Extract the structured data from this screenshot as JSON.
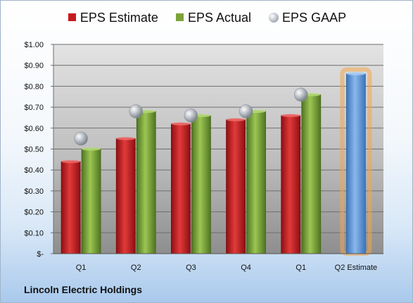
{
  "footer_title": "Lincoln Electric Holdings",
  "legend": [
    {
      "label": "EPS Estimate",
      "color": "#c8191f",
      "marker": "square"
    },
    {
      "label": "EPS Actual",
      "color": "#7ca33a",
      "marker": "square"
    },
    {
      "label": "EPS GAAP",
      "color": "#b8bec6",
      "marker": "circle"
    }
  ],
  "chart_data": {
    "type": "bar",
    "categories": [
      "Q1",
      "Q2",
      "Q3",
      "Q4",
      "Q1",
      "Q2 Estimate"
    ],
    "series": [
      {
        "name": "EPS Estimate",
        "values": [
          0.44,
          0.55,
          0.62,
          0.64,
          0.66,
          null
        ],
        "color": "#c8191f"
      },
      {
        "name": "EPS Actual",
        "values": [
          0.5,
          0.68,
          0.66,
          0.68,
          0.76,
          null
        ],
        "color": "#7ca33a"
      },
      {
        "name": "EPS GAAP",
        "values": [
          0.55,
          0.68,
          0.66,
          0.68,
          0.76,
          null
        ],
        "color": "#b8bec6",
        "marker": "circle"
      }
    ],
    "estimate": {
      "category": "Q2 Estimate",
      "value": 0.86,
      "color": "#6a9fdc",
      "glow": "#f3a64a"
    },
    "yticks": [
      {
        "value": 0,
        "label": "$-"
      },
      {
        "value": 0.1,
        "label": "$0.10"
      },
      {
        "value": 0.2,
        "label": "$0.20"
      },
      {
        "value": 0.3,
        "label": "$0.30"
      },
      {
        "value": 0.4,
        "label": "$0.40"
      },
      {
        "value": 0.5,
        "label": "$0.50"
      },
      {
        "value": 0.6,
        "label": "$0.60"
      },
      {
        "value": 0.7,
        "label": "$0.70"
      },
      {
        "value": 0.8,
        "label": "$0.80"
      },
      {
        "value": 0.9,
        "label": "$0.90"
      },
      {
        "value": 1.0,
        "label": "$1.00"
      }
    ],
    "ylim": [
      0,
      1.0
    ],
    "grid": true,
    "legend_position": "top"
  }
}
